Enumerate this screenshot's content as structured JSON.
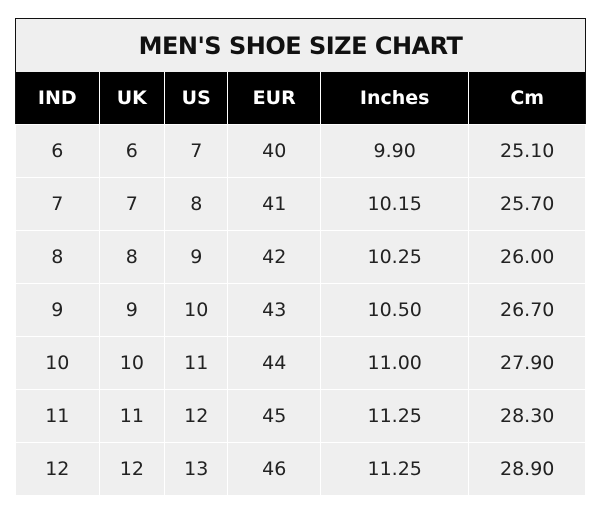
{
  "title": "MEN'S SHOE SIZE CHART",
  "columns": [
    "IND",
    "UK",
    "US",
    "EUR",
    "Inches",
    "Cm"
  ],
  "rows": [
    [
      "6",
      "6",
      "7",
      "40",
      "9.90",
      "25.10"
    ],
    [
      "7",
      "7",
      "8",
      "41",
      "10.15",
      "25.70"
    ],
    [
      "8",
      "8",
      "9",
      "42",
      "10.25",
      "26.00"
    ],
    [
      "9",
      "9",
      "10",
      "43",
      "10.50",
      "26.70"
    ],
    [
      "10",
      "10",
      "11",
      "44",
      "11.00",
      "27.90"
    ],
    [
      "11",
      "11",
      "12",
      "45",
      "11.25",
      "28.30"
    ],
    [
      "12",
      "12",
      "13",
      "46",
      "11.25",
      "28.90"
    ]
  ],
  "colors": {
    "header_bg": "#000000",
    "cell_bg": "#efefef"
  }
}
